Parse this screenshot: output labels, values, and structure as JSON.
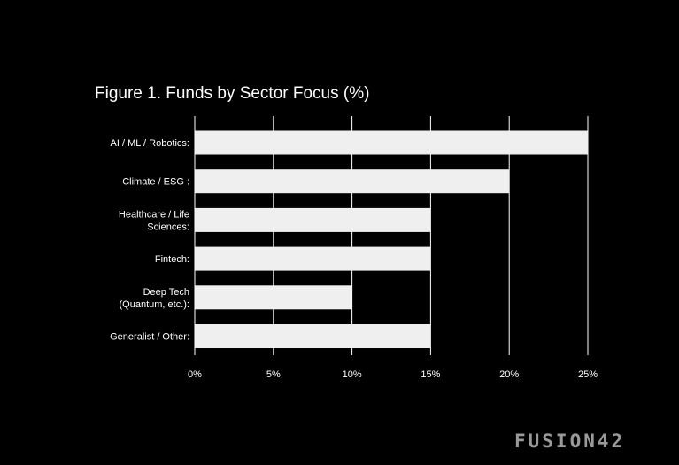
{
  "chart_data": {
    "type": "bar",
    "orientation": "horizontal",
    "title": "Figure 1. Funds by Sector Focus (%)",
    "categories": [
      [
        "AI / ML / Robotics:"
      ],
      [
        "Climate / ESG :"
      ],
      [
        "Healthcare / Life",
        "Sciences:"
      ],
      [
        "Fintech:"
      ],
      [
        "Deep Tech",
        "(Quantum, etc.):"
      ],
      [
        "Generalist / Other:"
      ]
    ],
    "values": [
      25,
      20,
      15,
      15,
      10,
      15
    ],
    "xlim": [
      0,
      25
    ],
    "xticks": [
      0,
      5,
      10,
      15,
      20,
      25
    ],
    "xtick_labels": [
      "0%",
      "5%",
      "10%",
      "15%",
      "20%",
      "25%"
    ],
    "xlabel": "",
    "ylabel": "",
    "grid": true,
    "legend": "none",
    "colors": {
      "background": "#000000",
      "bar": "#efefef",
      "grid": "#ffffff",
      "text": "#ffffff"
    }
  },
  "brand": {
    "logo_text": "FUSION42"
  }
}
